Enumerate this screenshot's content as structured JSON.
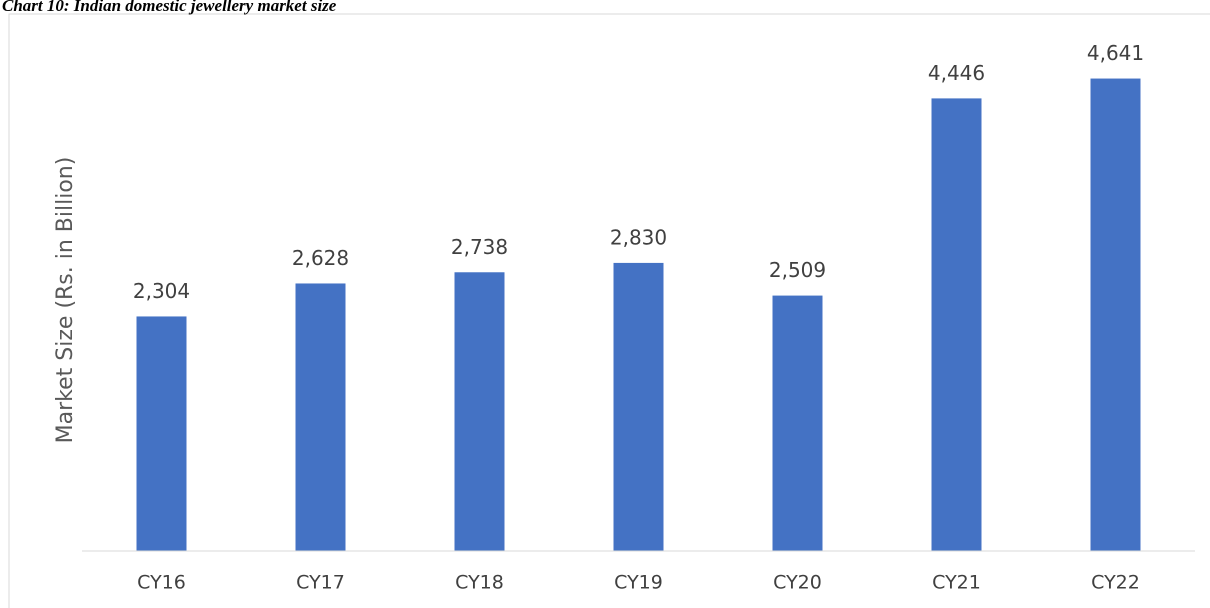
{
  "chart_data": {
    "type": "bar",
    "title": "Chart 10: Indian domestic jewellery market size",
    "y_label": "Market Size (Rs. in Billion)",
    "categories": [
      "CY16",
      "CY17",
      "CY18",
      "CY19",
      "CY20",
      "CY21",
      "CY22"
    ],
    "values": [
      2304,
      2628,
      2738,
      2830,
      2509,
      4446,
      4641
    ],
    "value_labels": [
      "2,304",
      "2,628",
      "2,738",
      "2,830",
      "2,509",
      "4,446",
      "4,641"
    ],
    "color": "#4472c4",
    "ylim": [
      0,
      5000
    ]
  }
}
